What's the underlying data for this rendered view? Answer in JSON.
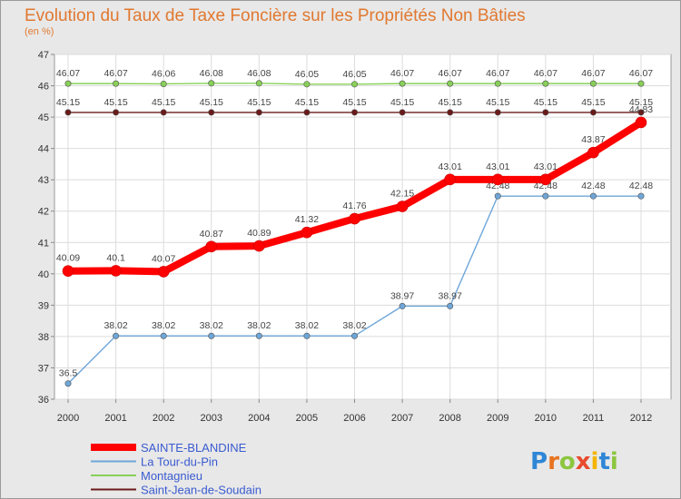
{
  "chart_data": {
    "type": "line",
    "title": "Evolution du Taux de Taxe Foncière sur les Propriétés Non Bâties",
    "unit_label": "(en %)",
    "x": [
      "2000",
      "2001",
      "2002",
      "2003",
      "2004",
      "2005",
      "2006",
      "2007",
      "2008",
      "2009",
      "2010",
      "2011",
      "2012"
    ],
    "ylim": [
      36,
      47
    ],
    "yticks": [
      36,
      37,
      38,
      39,
      40,
      41,
      42,
      43,
      44,
      45,
      46,
      47
    ],
    "grid": true,
    "legend_position": "bottom-left",
    "series": [
      {
        "name": "Montagnieu",
        "color": "#88d058",
        "values": [
          46.07,
          46.07,
          46.06,
          46.08,
          46.08,
          46.05,
          46.05,
          46.07,
          46.07,
          46.07,
          46.07,
          46.07,
          46.07
        ],
        "labels": [
          "46.07",
          "46.07",
          "46.06",
          "46.08",
          "46.08",
          "46.05",
          "46.05",
          "46.07",
          "46.07",
          "46.07",
          "46.07",
          "46.07",
          "46.07"
        ]
      },
      {
        "name": "Saint-Jean-de-Soudain",
        "color": "#6b1a1a",
        "values": [
          45.15,
          45.15,
          45.15,
          45.15,
          45.15,
          45.15,
          45.15,
          45.15,
          45.15,
          45.15,
          45.15,
          45.15,
          45.15
        ],
        "labels": [
          "45.15",
          "45.15",
          "45.15",
          "45.15",
          "45.15",
          "45.15",
          "45.15",
          "45.15",
          "45.15",
          "45.15",
          "45.15",
          "45.15",
          "45.15"
        ]
      },
      {
        "name": "La Tour-du-Pin",
        "color": "#6ea6d8",
        "values": [
          36.5,
          38.02,
          38.02,
          38.02,
          38.02,
          38.02,
          38.02,
          38.97,
          38.97,
          42.48,
          42.48,
          42.48,
          42.48
        ],
        "labels": [
          "36.5",
          "38.02",
          "38.02",
          "38.02",
          "38.02",
          "38.02",
          "38.02",
          "38.97",
          "38.97",
          "42.48",
          "42.48",
          "42.48",
          "42.48"
        ]
      },
      {
        "name": "SAINTE-BLANDINE",
        "color": "#ff0000",
        "values": [
          40.09,
          40.1,
          40.07,
          40.87,
          40.89,
          41.32,
          41.76,
          42.15,
          43.01,
          43.01,
          43.01,
          43.87,
          44.83
        ],
        "labels": [
          "40.09",
          "40.1",
          "40.07",
          "40.87",
          "40.89",
          "41.32",
          "41.76",
          "42.15",
          "43.01",
          "43.01",
          "43.01",
          "43.87",
          "44.83"
        ]
      }
    ],
    "legend": [
      {
        "name": "SAINTE-BLANDINE",
        "color": "#ff0000",
        "text_color": "#3a5bd0"
      },
      {
        "name": "La Tour-du-Pin",
        "color": "#6ea6d8",
        "text_color": "#3a5bd0"
      },
      {
        "name": "Montagnieu",
        "color": "#88d058",
        "text_color": "#3a5bd0"
      },
      {
        "name": "Saint-Jean-de-Soudain",
        "color": "#6b1a1a",
        "text_color": "#3a5bd0"
      }
    ]
  },
  "logo": {
    "text": "Proxiti",
    "letters": [
      {
        "ch": "P",
        "color": "#2f86d6"
      },
      {
        "ch": "r",
        "color": "#e8731e"
      },
      {
        "ch": "o",
        "color": "#8cc63f"
      },
      {
        "ch": "x",
        "color": "#e84a2e"
      },
      {
        "ch": "i",
        "color": "#f4b400"
      },
      {
        "ch": "t",
        "color": "#2f86d6"
      },
      {
        "ch": "i",
        "color": "#8cc63f"
      }
    ]
  }
}
